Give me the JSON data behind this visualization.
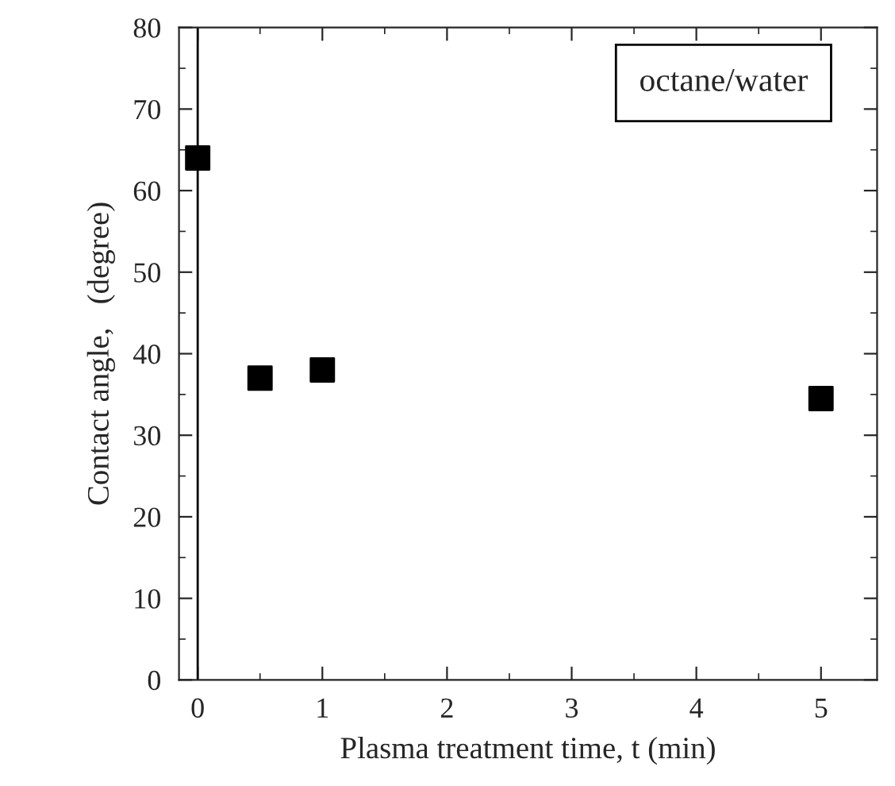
{
  "chart_data": {
    "type": "scatter",
    "xlabel": "Plasma treatment time, t (min)",
    "ylabel": "Contact angle,   (degree)",
    "x": [
      0,
      0.5,
      1,
      5
    ],
    "series": [
      {
        "color": "#000000",
        "values": [
          64,
          37,
          38,
          34.5
        ]
      }
    ],
    "marker": "square",
    "xlim": [
      -0.15,
      5.45
    ],
    "xticks": [
      0,
      1,
      2,
      3,
      4,
      5
    ],
    "ylim": [
      0,
      80
    ],
    "yticks": [
      0,
      10,
      20,
      30,
      40,
      50,
      60,
      70,
      80
    ],
    "ref_lines": [
      {
        "axis": "x",
        "value": 0,
        "color": "#000000"
      }
    ],
    "annotations": [
      "octane/water"
    ],
    "grid": false
  }
}
